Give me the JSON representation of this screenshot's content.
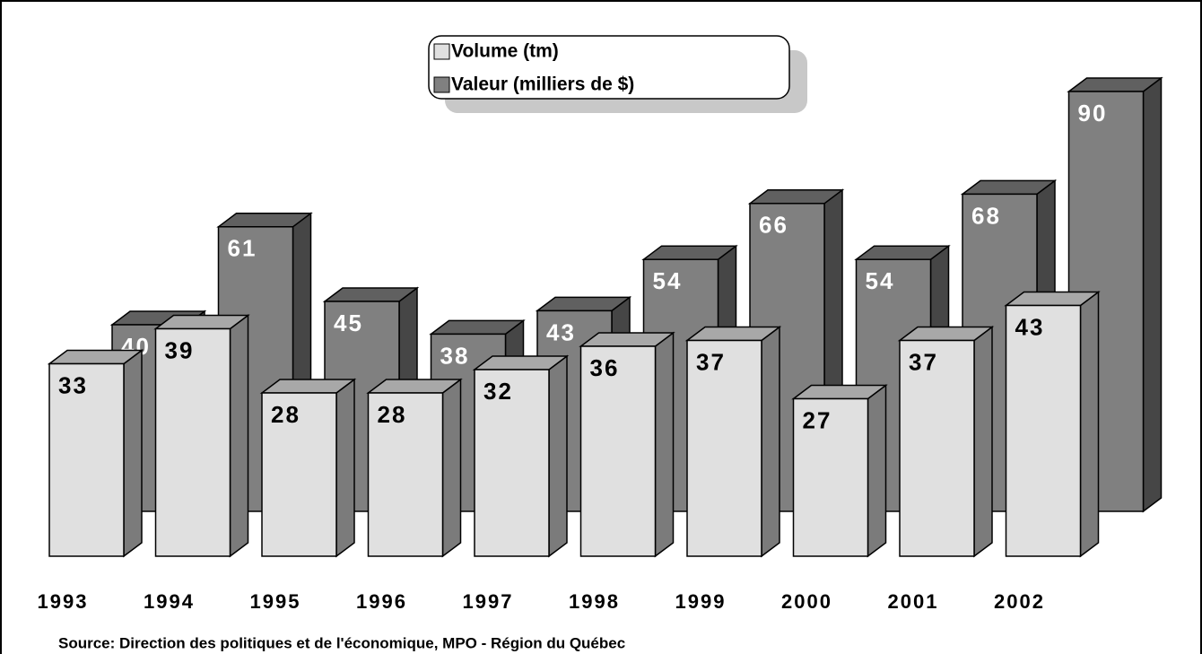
{
  "chart_data": {
    "type": "bar3d",
    "categories": [
      "1993",
      "1994",
      "1995",
      "1996",
      "1997",
      "1998",
      "1999",
      "2000",
      "2001",
      "2002"
    ],
    "series": [
      {
        "name": "Volume (tm)",
        "color": "#e0e0e0",
        "values": [
          33,
          39,
          28,
          28,
          32,
          36,
          37,
          27,
          37,
          43
        ]
      },
      {
        "name": "Valeur (milliers de $)",
        "color": "#808080",
        "values": [
          40,
          61,
          45,
          38,
          43,
          54,
          66,
          54,
          68,
          90
        ]
      }
    ],
    "legend": "top",
    "source": "Source:  Direction des politiques et de l'économique, MPO - Région du Québec"
  }
}
